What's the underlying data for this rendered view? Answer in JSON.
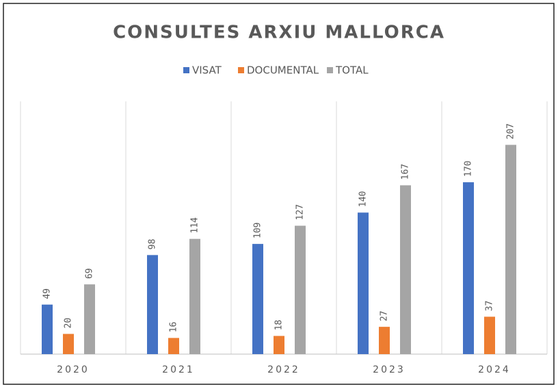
{
  "chart_data": {
    "type": "bar",
    "title": "CONSULTES ARXIU MALLORCA",
    "categories": [
      "2020",
      "2021",
      "2022",
      "2023",
      "2024"
    ],
    "series": [
      {
        "name": "VISAT",
        "color": "#4472c4",
        "values": [
          49,
          98,
          109,
          140,
          170
        ]
      },
      {
        "name": "DOCUMENTAL",
        "color": "#ed7d31",
        "values": [
          20,
          16,
          18,
          27,
          37
        ]
      },
      {
        "name": "TOTAL",
        "color": "#a5a5a5",
        "values": [
          69,
          114,
          127,
          167,
          207
        ]
      }
    ],
    "ylim": [
      0,
      250
    ],
    "legend": "top"
  }
}
